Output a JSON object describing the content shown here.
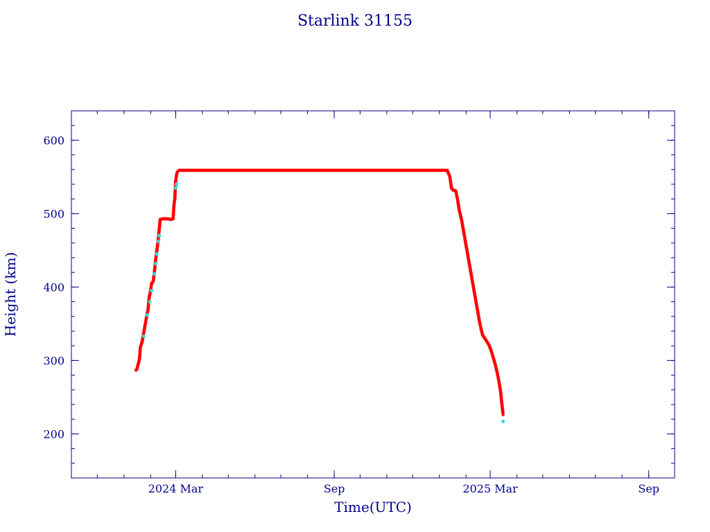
{
  "colors": {
    "frame": "#000080",
    "text": "#00008b",
    "marker_primary": "#ff0000",
    "marker_secondary": "#33dddd",
    "connector": "#000000"
  },
  "chart_data": {
    "type": "scatter",
    "title": "Starlink 31155",
    "xlabel": "Time(UTC)",
    "ylabel": "Height (km)",
    "x_range": [
      "2023-11-01",
      "2025-10-01"
    ],
    "ylim": [
      140,
      640
    ],
    "x_ticks": [
      {
        "date": "2024-03-01",
        "label": "2024 Mar"
      },
      {
        "date": "2024-09-01",
        "label": "Sep"
      },
      {
        "date": "2025-03-01",
        "label": "2025 Mar"
      },
      {
        "date": "2025-09-01",
        "label": "Sep"
      }
    ],
    "y_ticks": [
      200,
      300,
      400,
      500,
      600
    ],
    "grid": false,
    "legend": "none",
    "series": [
      {
        "marker": "asterisk",
        "color": "#ff0000",
        "points": [
          [
            "2024-01-15",
            287
          ],
          [
            "2024-01-16",
            288
          ],
          [
            "2024-01-19",
            302
          ],
          [
            "2024-01-20",
            318
          ],
          [
            "2024-01-22",
            325
          ],
          [
            "2024-01-25",
            345
          ],
          [
            "2024-01-27",
            358
          ],
          [
            "2024-01-29",
            370
          ],
          [
            "2024-01-30",
            384
          ],
          [
            "2024-02-01",
            396
          ],
          [
            "2024-02-02",
            405
          ],
          [
            "2024-02-04",
            408
          ],
          [
            "2024-02-06",
            428
          ],
          [
            "2024-02-07",
            440
          ],
          [
            "2024-02-09",
            457
          ],
          [
            "2024-02-10",
            468
          ],
          [
            "2024-02-11",
            480
          ],
          [
            "2024-02-12",
            492
          ],
          [
            "2024-02-15",
            493
          ],
          [
            "2024-02-18",
            493
          ],
          [
            "2024-02-21",
            493
          ],
          [
            "2024-02-24",
            492
          ],
          [
            "2024-02-27",
            493
          ],
          [
            "2024-02-28",
            512
          ],
          [
            "2024-02-29",
            520
          ],
          [
            "2024-03-01",
            545
          ],
          [
            "2024-03-02",
            553
          ],
          [
            "2024-03-03",
            557
          ],
          [
            "2024-03-05",
            559
          ],
          [
            "2024-04-01",
            559
          ],
          [
            "2024-05-01",
            559
          ],
          [
            "2024-06-01",
            559
          ],
          [
            "2024-07-01",
            559
          ],
          [
            "2024-08-01",
            559
          ],
          [
            "2024-09-01",
            559
          ],
          [
            "2024-10-01",
            559
          ],
          [
            "2024-11-01",
            559
          ],
          [
            "2024-12-01",
            559
          ],
          [
            "2025-01-01",
            559
          ],
          [
            "2025-01-10",
            559
          ],
          [
            "2025-01-13",
            551
          ],
          [
            "2025-01-15",
            535
          ],
          [
            "2025-01-17",
            532
          ],
          [
            "2025-01-20",
            531
          ],
          [
            "2025-01-22",
            520
          ],
          [
            "2025-01-24",
            505
          ],
          [
            "2025-01-27",
            490
          ],
          [
            "2025-01-30",
            470
          ],
          [
            "2025-02-02",
            450
          ],
          [
            "2025-02-05",
            430
          ],
          [
            "2025-02-08",
            410
          ],
          [
            "2025-02-11",
            390
          ],
          [
            "2025-02-14",
            370
          ],
          [
            "2025-02-17",
            350
          ],
          [
            "2025-02-20",
            335
          ],
          [
            "2025-02-24",
            328
          ],
          [
            "2025-02-28",
            320
          ],
          [
            "2025-03-03",
            310
          ],
          [
            "2025-03-06",
            298
          ],
          [
            "2025-03-09",
            284
          ],
          [
            "2025-03-11",
            272
          ],
          [
            "2025-03-13",
            258
          ],
          [
            "2025-03-14",
            246
          ],
          [
            "2025-03-15",
            236
          ],
          [
            "2025-03-16",
            226
          ]
        ]
      },
      {
        "marker": "dot",
        "color": "#33dddd",
        "points": [
          [
            "2024-01-24",
            333
          ],
          [
            "2024-01-28",
            362
          ],
          [
            "2024-01-31",
            380
          ],
          [
            "2024-02-02",
            395
          ],
          [
            "2024-02-05",
            418
          ],
          [
            "2024-02-07",
            432
          ],
          [
            "2024-02-08",
            445
          ],
          [
            "2024-02-10",
            462
          ],
          [
            "2024-02-11",
            470
          ],
          [
            "2024-03-01",
            535
          ],
          [
            "2024-03-02",
            540
          ],
          [
            "2025-03-16",
            217
          ]
        ]
      }
    ]
  }
}
